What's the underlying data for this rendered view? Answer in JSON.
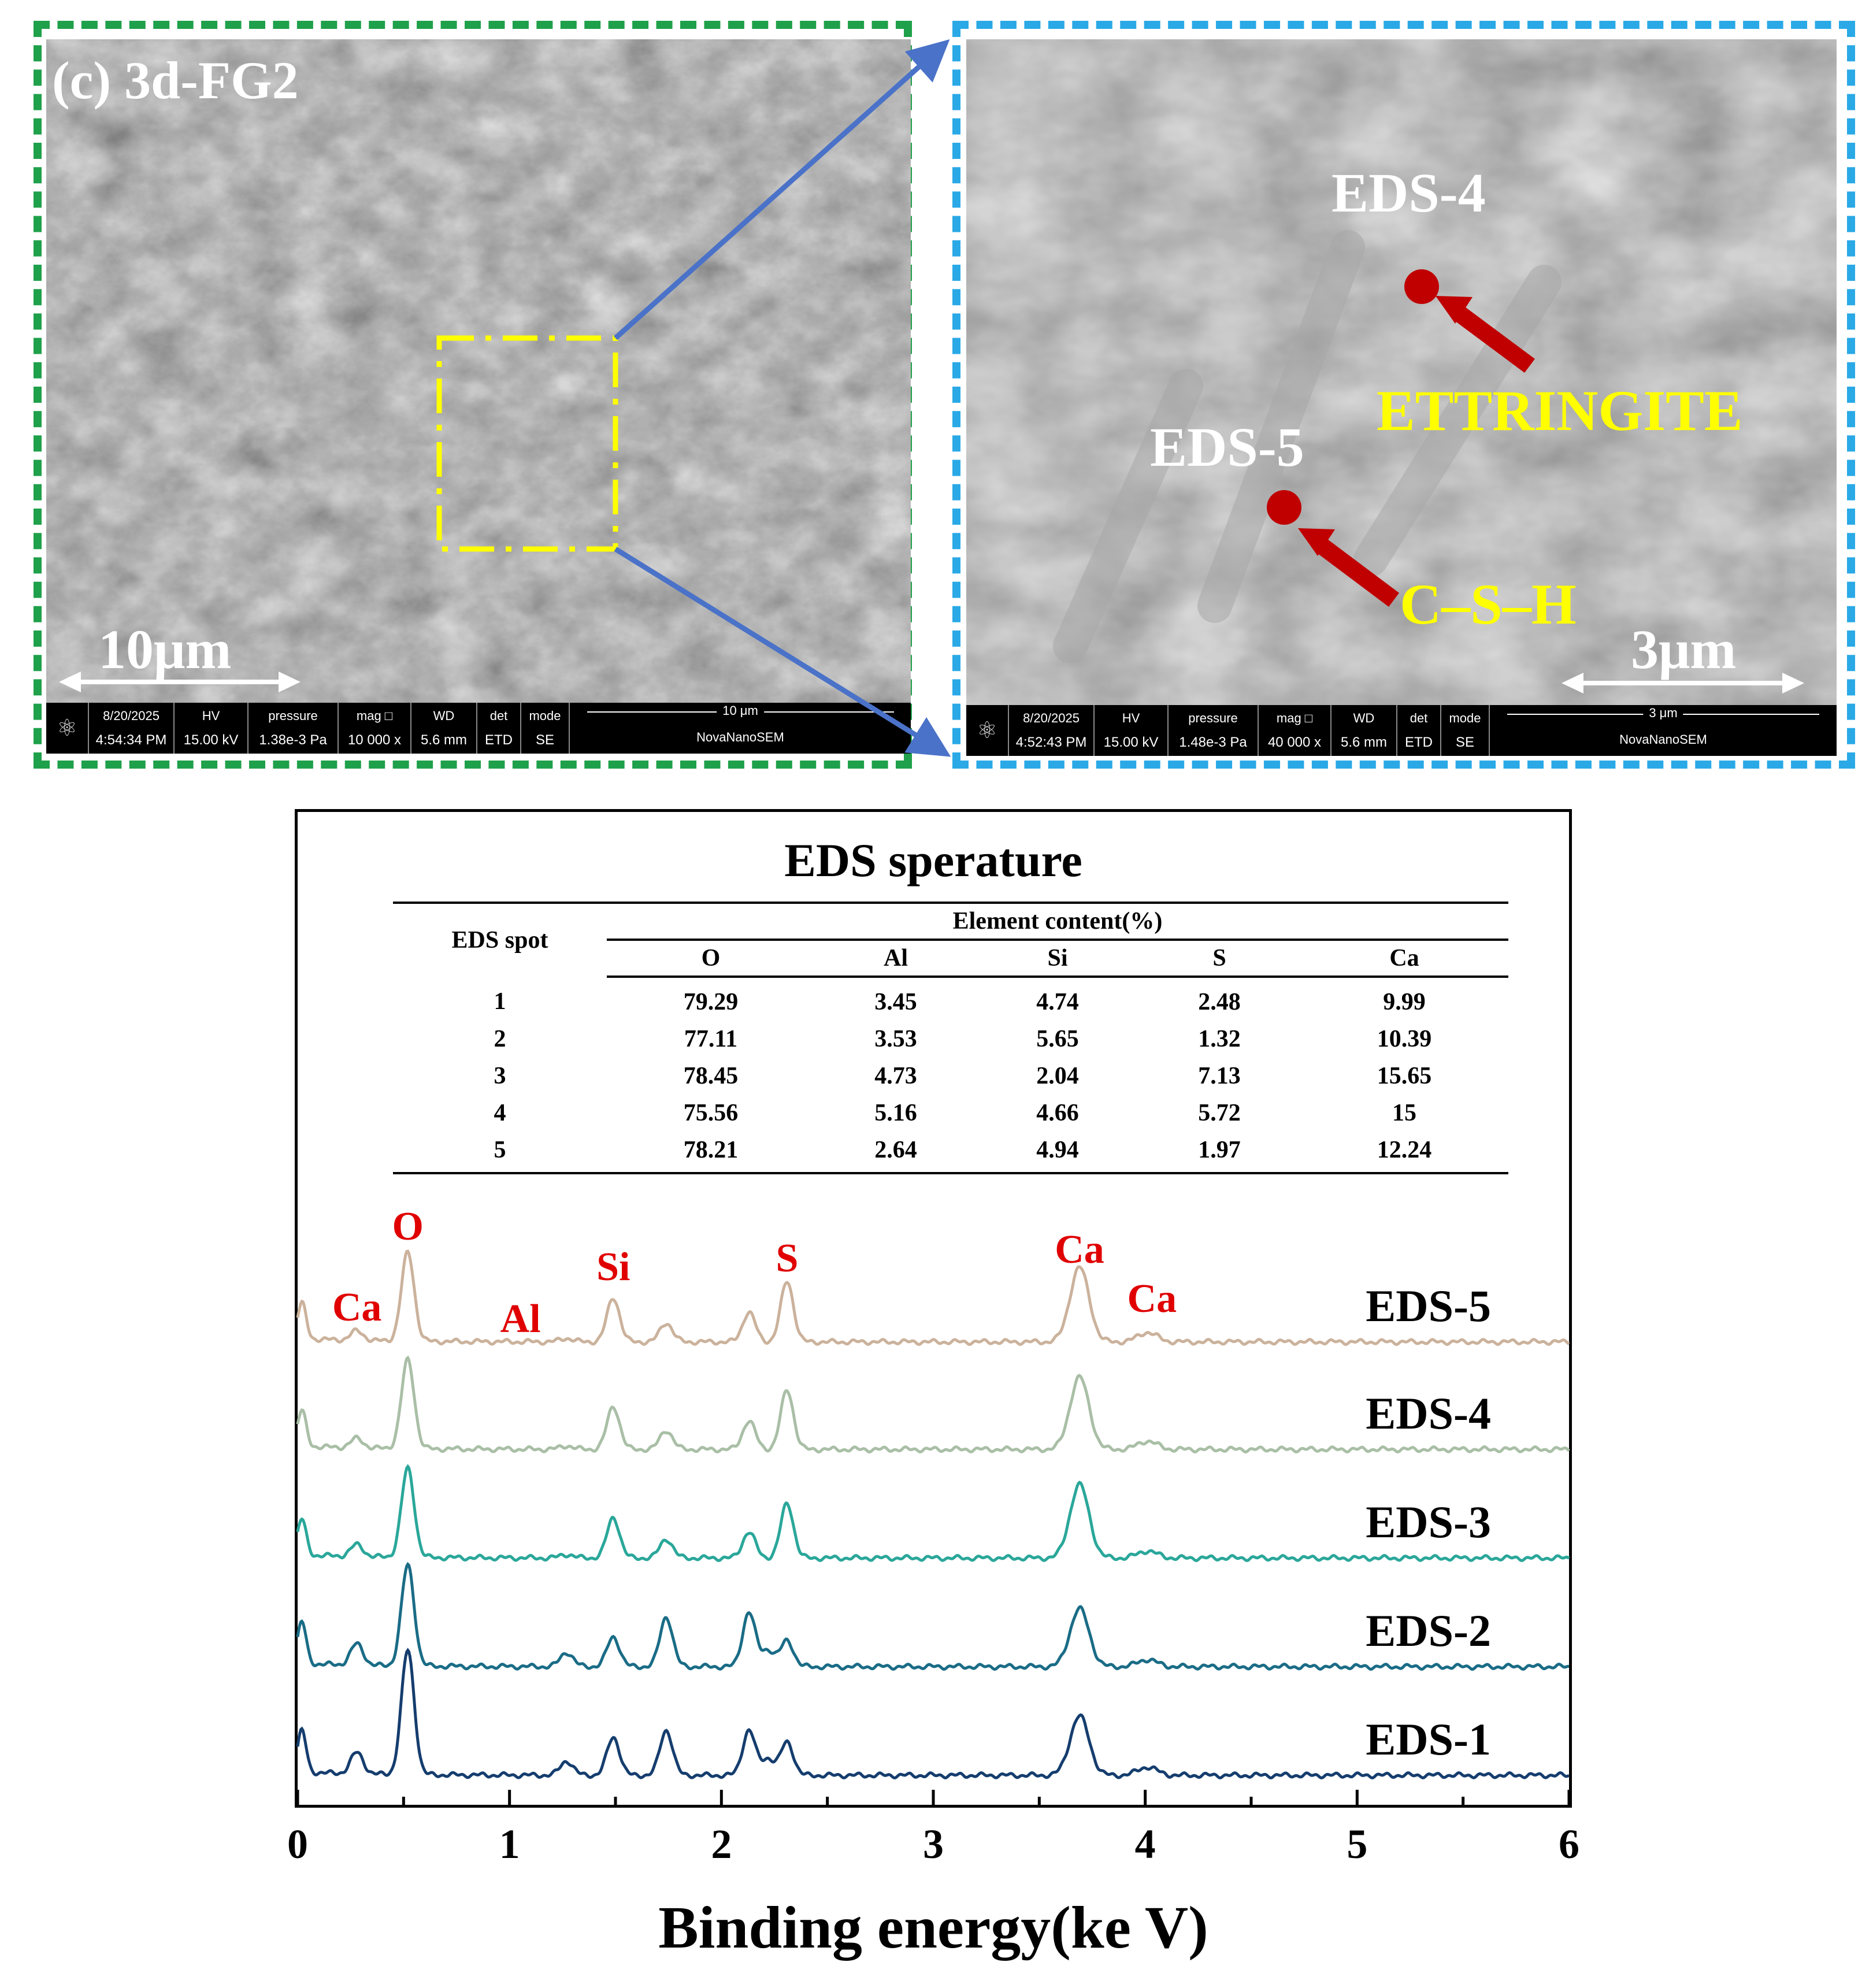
{
  "sem_left": {
    "panel_label": "(c) 3d-FG2",
    "scale_label": "10μm",
    "info": {
      "date": "8/20/2025",
      "time": "4:54:34 PM",
      "hv_label": "HV",
      "hv": "15.00 kV",
      "pressure_label": "pressure",
      "pressure": "1.38e-3 Pa",
      "mag_label": "mag □",
      "mag": "10 000 x",
      "wd_label": "WD",
      "wd": "5.6 mm",
      "det_label": "det",
      "det": "ETD",
      "mode_label": "mode",
      "mode": "SE",
      "bar_label": "10 μm",
      "instrument": "NovaNanoSEM"
    }
  },
  "sem_right": {
    "scale_label": "3μm",
    "annotations": {
      "eds4": "EDS-4",
      "eds5": "EDS-5",
      "ettringite": "ETTRINGITE",
      "csh": "C–S–H"
    },
    "info": {
      "date": "8/20/2025",
      "time": "4:52:43 PM",
      "hv_label": "HV",
      "hv": "15.00 kV",
      "pressure_label": "pressure",
      "pressure": "1.48e-3 Pa",
      "mag_label": "mag □",
      "mag": "40 000 x",
      "wd_label": "WD",
      "wd": "5.6 mm",
      "det_label": "det",
      "det": "ETD",
      "mode_label": "mode",
      "mode": "SE",
      "bar_label": "3 μm",
      "instrument": "NovaNanoSEM"
    }
  },
  "colors": {
    "frame_green": "#1fa04a",
    "frame_blue": "#2aa9e6",
    "roi_yellow": "#ffff00",
    "zoom_arrow": "#4a72c8",
    "marker_red": "#c00000",
    "label_yellow": "#ffff00",
    "peak_label_red": "#e00000"
  },
  "table": {
    "title": "EDS sperature",
    "spot_header": "EDS spot",
    "group_header": "Element content(%)",
    "columns": [
      "O",
      "Al",
      "Si",
      "S",
      "Ca"
    ],
    "rows": [
      {
        "spot": "1",
        "values": [
          "79.29",
          "3.45",
          "4.74",
          "2.48",
          "9.99"
        ]
      },
      {
        "spot": "2",
        "values": [
          "77.11",
          "3.53",
          "5.65",
          "1.32",
          "10.39"
        ]
      },
      {
        "spot": "3",
        "values": [
          "78.45",
          "4.73",
          "2.04",
          "7.13",
          "15.65"
        ]
      },
      {
        "spot": "4",
        "values": [
          "75.56",
          "5.16",
          "4.66",
          "5.72",
          "15"
        ]
      },
      {
        "spot": "5",
        "values": [
          "78.21",
          "2.64",
          "4.94",
          "1.97",
          "12.24"
        ]
      }
    ]
  },
  "chart_data": {
    "type": "line",
    "xlabel": "Binding energy(ke V)",
    "xlim": [
      0,
      6
    ],
    "xticks": [
      "0",
      "1",
      "2",
      "3",
      "4",
      "5",
      "6"
    ],
    "offset_stacked": true,
    "peak_labels": [
      {
        "text": "Ca",
        "x": 0.28
      },
      {
        "text": "O",
        "x": 0.52
      },
      {
        "text": "Al",
        "x": 1.27
      },
      {
        "text": "Si",
        "x": 1.49
      },
      {
        "text": "S",
        "x": 2.31
      },
      {
        "text": "Ca",
        "x": 3.69
      },
      {
        "text": "Ca",
        "x": 4.01
      }
    ],
    "series": [
      {
        "name": "EDS-1",
        "color": "#153d6e",
        "peaks": [
          [
            0.02,
            0.35
          ],
          [
            0.28,
            0.18
          ],
          [
            0.52,
            1.05
          ],
          [
            1.27,
            0.12
          ],
          [
            1.49,
            0.32
          ],
          [
            1.74,
            0.38
          ],
          [
            2.13,
            0.38
          ],
          [
            2.22,
            0.14
          ],
          [
            2.31,
            0.28
          ],
          [
            3.69,
            0.5
          ],
          [
            4.01,
            0.07
          ]
        ]
      },
      {
        "name": "EDS-2",
        "color": "#1a6c86",
        "peaks": [
          [
            0.02,
            0.35
          ],
          [
            0.28,
            0.18
          ],
          [
            0.52,
            0.85
          ],
          [
            1.27,
            0.12
          ],
          [
            1.49,
            0.25
          ],
          [
            1.74,
            0.42
          ],
          [
            2.13,
            0.46
          ],
          [
            2.22,
            0.14
          ],
          [
            2.31,
            0.22
          ],
          [
            3.69,
            0.49
          ],
          [
            4.01,
            0.06
          ]
        ]
      },
      {
        "name": "EDS-3",
        "color": "#2aa79a",
        "peaks": [
          [
            0.02,
            0.3
          ],
          [
            0.28,
            0.1
          ],
          [
            0.52,
            0.75
          ],
          [
            1.27,
            0.03
          ],
          [
            1.49,
            0.34
          ],
          [
            1.74,
            0.16
          ],
          [
            2.13,
            0.22
          ],
          [
            2.31,
            0.46
          ],
          [
            3.69,
            0.62
          ],
          [
            4.01,
            0.06
          ]
        ]
      },
      {
        "name": "EDS-4",
        "color": "#a9bfa6",
        "peaks": [
          [
            0.02,
            0.3
          ],
          [
            0.28,
            0.08
          ],
          [
            0.52,
            0.75
          ],
          [
            1.27,
            0.03
          ],
          [
            1.49,
            0.36
          ],
          [
            1.74,
            0.16
          ],
          [
            2.13,
            0.24
          ],
          [
            2.31,
            0.5
          ],
          [
            3.69,
            0.61
          ],
          [
            4.01,
            0.07
          ]
        ]
      },
      {
        "name": "EDS-5",
        "color": "#cbb29c",
        "peaks": [
          [
            0.02,
            0.3
          ],
          [
            0.28,
            0.08
          ],
          [
            0.52,
            0.75
          ],
          [
            1.27,
            0.03
          ],
          [
            1.49,
            0.37
          ],
          [
            1.74,
            0.16
          ],
          [
            2.13,
            0.25
          ],
          [
            2.31,
            0.51
          ],
          [
            3.69,
            0.63
          ],
          [
            4.01,
            0.08
          ]
        ]
      }
    ]
  }
}
